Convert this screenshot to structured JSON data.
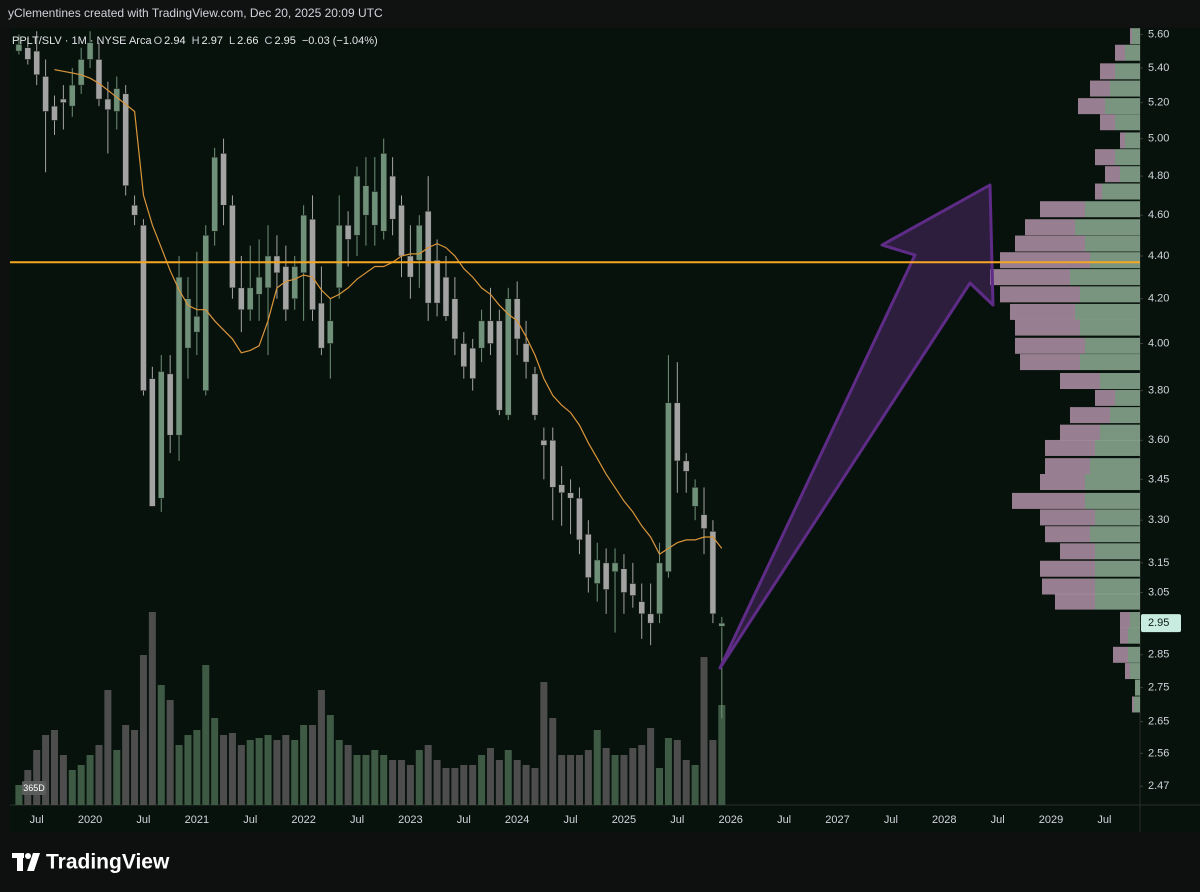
{
  "header": "yClementines created with TradingView.com, Dec 20, 2025 20:09 UTC",
  "chart_data": {
    "type": "candlestick",
    "legend": {
      "symbol": "PPLT/SLV · 1M · NYSE Arca",
      "fields": [
        {
          "key": "O",
          "value": "2.94"
        },
        {
          "key": "H",
          "value": "2.97"
        },
        {
          "key": "L",
          "value": "2.66"
        },
        {
          "key": "C",
          "value": "2.95"
        }
      ],
      "change": "−0.03 (−1.04%)"
    },
    "x": [
      "2019-05",
      "2019-06",
      "2019-07",
      "2019-08",
      "2019-09",
      "2019-10",
      "2019-11",
      "2019-12",
      "2020-01",
      "2020-02",
      "2020-03",
      "2020-04",
      "2020-05",
      "2020-06",
      "2020-07",
      "2020-08",
      "2020-09",
      "2020-10",
      "2020-11",
      "2020-12",
      "2021-01",
      "2021-02",
      "2021-03",
      "2021-04",
      "2021-05",
      "2021-06",
      "2021-07",
      "2021-08",
      "2021-09",
      "2021-10",
      "2021-11",
      "2021-12",
      "2022-01",
      "2022-02",
      "2022-03",
      "2022-04",
      "2022-05",
      "2022-06",
      "2022-07",
      "2022-08",
      "2022-09",
      "2022-10",
      "2022-11",
      "2022-12",
      "2023-01",
      "2023-02",
      "2023-03",
      "2023-04",
      "2023-05",
      "2023-06",
      "2023-07",
      "2023-08",
      "2023-09",
      "2023-10",
      "2023-11",
      "2023-12",
      "2024-01",
      "2024-02",
      "2024-03",
      "2024-04",
      "2024-05",
      "2024-06",
      "2024-07",
      "2024-08",
      "2024-09",
      "2024-10",
      "2024-11",
      "2024-12",
      "2025-01",
      "2025-02",
      "2025-03",
      "2025-04",
      "2025-05",
      "2025-06",
      "2025-07",
      "2025-08",
      "2025-09",
      "2025-10",
      "2025-11",
      "2025-12"
    ],
    "open": [
      5.5,
      5.52,
      5.5,
      5.35,
      5.18,
      5.22,
      5.18,
      5.3,
      5.45,
      5.45,
      5.22,
      5.15,
      5.25,
      4.65,
      4.55,
      3.85,
      3.38,
      3.87,
      3.62,
      3.98,
      4.05,
      3.8,
      4.52,
      4.92,
      4.65,
      4.25,
      4.15,
      4.22,
      4.25,
      4.4,
      4.35,
      4.2,
      4.32,
      4.58,
      4.18,
      4.0,
      4.25,
      4.55,
      4.5,
      4.6,
      4.55,
      4.52,
      4.8,
      4.65,
      4.4,
      4.38,
      4.62,
      4.38,
      4.3,
      4.2,
      4.0,
      3.98,
      3.98,
      4.1,
      4.1,
      3.7,
      4.2,
      4.0,
      3.87,
      3.6,
      3.6,
      3.43,
      3.4,
      3.38,
      3.25,
      3.08,
      3.15,
      3.12,
      3.13,
      3.08,
      3.02,
      2.98,
      2.98,
      3.12,
      3.75,
      3.52,
      3.35,
      3.32,
      3.26,
      2.94
    ],
    "high": [
      5.6,
      5.58,
      5.62,
      5.45,
      5.24,
      5.3,
      5.4,
      5.52,
      5.62,
      5.55,
      5.32,
      5.35,
      5.3,
      4.7,
      4.58,
      3.9,
      3.95,
      3.95,
      4.4,
      4.3,
      4.42,
      4.55,
      4.95,
      5.0,
      4.7,
      4.4,
      4.45,
      4.48,
      4.55,
      4.5,
      4.45,
      4.4,
      4.65,
      4.7,
      4.35,
      4.2,
      4.7,
      4.62,
      4.85,
      4.9,
      4.9,
      5.0,
      4.9,
      4.7,
      4.55,
      4.6,
      4.8,
      4.48,
      4.4,
      4.3,
      4.05,
      4.02,
      4.15,
      4.25,
      4.15,
      4.25,
      4.28,
      4.1,
      3.9,
      3.65,
      3.65,
      3.5,
      3.45,
      3.42,
      3.3,
      3.22,
      3.2,
      3.2,
      3.18,
      3.15,
      3.08,
      3.08,
      3.22,
      3.95,
      3.92,
      3.55,
      3.45,
      3.42,
      3.3,
      2.97
    ],
    "low": [
      5.48,
      5.42,
      5.3,
      4.82,
      5.02,
      5.05,
      5.12,
      5.25,
      5.4,
      5.18,
      4.92,
      5.05,
      4.7,
      4.55,
      3.78,
      3.35,
      3.33,
      3.55,
      3.52,
      3.85,
      3.95,
      3.78,
      4.45,
      4.55,
      4.2,
      4.05,
      4.1,
      4.1,
      3.95,
      4.2,
      4.1,
      4.15,
      4.1,
      4.1,
      3.95,
      3.85,
      4.2,
      4.35,
      4.4,
      4.45,
      4.45,
      4.48,
      4.5,
      4.3,
      4.2,
      4.25,
      4.1,
      4.12,
      4.1,
      3.95,
      3.85,
      3.8,
      3.92,
      3.95,
      3.7,
      3.68,
      3.95,
      3.85,
      3.68,
      3.45,
      3.3,
      3.28,
      3.25,
      3.18,
      3.05,
      3.02,
      2.98,
      2.92,
      2.98,
      3.0,
      2.9,
      2.88,
      2.95,
      3.1,
      3.4,
      3.4,
      3.3,
      3.18,
      2.95,
      2.66
    ],
    "close": [
      5.54,
      5.45,
      5.36,
      5.15,
      5.1,
      5.2,
      5.3,
      5.45,
      5.55,
      5.22,
      5.16,
      5.28,
      4.75,
      4.6,
      3.8,
      3.35,
      3.88,
      3.62,
      4.3,
      4.2,
      4.12,
      4.5,
      4.9,
      4.65,
      4.25,
      4.15,
      4.25,
      4.3,
      4.4,
      4.32,
      4.15,
      4.35,
      4.6,
      4.15,
      3.98,
      4.1,
      4.55,
      4.48,
      4.8,
      4.75,
      4.72,
      4.92,
      4.58,
      4.4,
      4.3,
      4.55,
      4.18,
      4.18,
      4.12,
      4.02,
      3.9,
      3.85,
      4.1,
      4.0,
      3.72,
      4.2,
      4.02,
      3.92,
      3.7,
      3.58,
      3.42,
      3.4,
      3.38,
      3.23,
      3.1,
      3.16,
      3.06,
      3.15,
      3.05,
      3.04,
      2.98,
      2.95,
      3.15,
      3.75,
      3.52,
      3.48,
      3.42,
      3.27,
      2.98,
      2.95
    ],
    "volume": [
      20,
      35,
      55,
      70,
      75,
      50,
      35,
      40,
      50,
      60,
      115,
      55,
      80,
      75,
      150,
      193,
      120,
      105,
      60,
      70,
      75,
      140,
      87,
      70,
      72,
      60,
      65,
      67,
      70,
      65,
      70,
      65,
      80,
      80,
      115,
      90,
      65,
      60,
      50,
      50,
      55,
      50,
      45,
      45,
      40,
      55,
      60,
      45,
      37,
      37,
      40,
      40,
      50,
      57,
      45,
      55,
      45,
      40,
      37,
      123,
      87,
      50,
      50,
      50,
      55,
      75,
      57,
      50,
      50,
      57,
      60,
      77,
      37,
      67,
      65,
      45,
      40,
      148,
      65,
      100
    ],
    "sma": [
      null,
      null,
      null,
      null,
      5.39,
      5.38,
      5.37,
      5.36,
      5.34,
      5.31,
      5.27,
      5.23,
      5.19,
      5.15,
      4.7,
      4.55,
      4.44,
      4.33,
      4.24,
      4.17,
      4.15,
      4.15,
      4.1,
      4.06,
      4.02,
      3.96,
      3.97,
      3.99,
      4.1,
      4.25,
      4.28,
      4.29,
      4.31,
      4.3,
      4.24,
      4.2,
      4.22,
      4.25,
      4.29,
      4.32,
      4.35,
      4.35,
      4.37,
      4.4,
      4.41,
      4.41,
      4.44,
      4.46,
      4.44,
      4.4,
      4.34,
      4.3,
      4.25,
      4.22,
      4.17,
      4.13,
      4.1,
      4.03,
      3.95,
      3.85,
      3.78,
      3.74,
      3.71,
      3.66,
      3.59,
      3.53,
      3.47,
      3.42,
      3.37,
      3.33,
      3.28,
      3.24,
      3.18,
      3.2,
      3.22,
      3.23,
      3.23,
      3.24,
      3.24,
      3.2
    ],
    "up_color": "#6f9179",
    "down_color": "#a3a3a3",
    "volume_up_color": "#3e5a45",
    "volume_down_color": "#4d4d4d",
    "sma_color": "#d9953a",
    "log_scale": true,
    "ylim": [
      2.42,
      5.64
    ],
    "yticks": [
      {
        "value": 5.6,
        "label": "5.60"
      },
      {
        "value": 5.4,
        "label": "5.40"
      },
      {
        "value": 5.2,
        "label": "5.20"
      },
      {
        "value": 5,
        "label": "5.00"
      },
      {
        "value": 4.8,
        "label": "4.80"
      },
      {
        "value": 4.6,
        "label": "4.60"
      },
      {
        "value": 4.4,
        "label": "4.40"
      },
      {
        "value": 4.2,
        "label": "4.20"
      },
      {
        "value": 4,
        "label": "4.00"
      },
      {
        "value": 3.8,
        "label": "3.80"
      },
      {
        "value": 3.6,
        "label": "3.60"
      },
      {
        "value": 3.45,
        "label": "3.45"
      },
      {
        "value": 3.3,
        "label": "3.30"
      },
      {
        "value": 3.15,
        "label": "3.15"
      },
      {
        "value": 3.05,
        "label": "3.05"
      },
      {
        "value": 2.95,
        "label": "2.95"
      },
      {
        "value": 2.85,
        "label": "2.85"
      },
      {
        "value": 2.75,
        "label": "2.75"
      },
      {
        "value": 2.65,
        "label": "2.65"
      },
      {
        "value": 2.56,
        "label": "2.56"
      },
      {
        "value": 2.47,
        "label": "2.47"
      }
    ],
    "xlim": [
      "2019-04",
      "2029-11"
    ],
    "xticks": [
      {
        "value": "2019-07",
        "label": "Jul"
      },
      {
        "value": "2020-01",
        "label": "2020"
      },
      {
        "value": "2020-07",
        "label": "Jul"
      },
      {
        "value": "2021-01",
        "label": "2021"
      },
      {
        "value": "2021-07",
        "label": "Jul"
      },
      {
        "value": "2022-01",
        "label": "2022"
      },
      {
        "value": "2022-07",
        "label": "Jul"
      },
      {
        "value": "2023-01",
        "label": "2023"
      },
      {
        "value": "2023-07",
        "label": "Jul"
      },
      {
        "value": "2024-01",
        "label": "2024"
      },
      {
        "value": "2024-07",
        "label": "Jul"
      },
      {
        "value": "2025-01",
        "label": "2025"
      },
      {
        "value": "2025-07",
        "label": "Jul"
      },
      {
        "value": "2026-01",
        "label": "2026"
      },
      {
        "value": "2026-07",
        "label": "Jul"
      },
      {
        "value": "2027-01",
        "label": "2027"
      },
      {
        "value": "2027-07",
        "label": "Jul"
      },
      {
        "value": "2028-01",
        "label": "2028"
      },
      {
        "value": "2028-07",
        "label": "Jul"
      },
      {
        "value": "2029-01",
        "label": "2029"
      },
      {
        "value": "2029-07",
        "label": "Jul"
      }
    ],
    "last_price": {
      "value": 2.95,
      "label": "2.95",
      "color": "#c8ece0"
    },
    "hline": {
      "value": 4.37,
      "color": "#f5a623"
    },
    "volume_profile": {
      "prices": [
        5.59,
        5.49,
        5.38,
        5.28,
        5.18,
        5.09,
        4.99,
        4.9,
        4.81,
        4.72,
        4.63,
        4.54,
        4.46,
        4.38,
        4.3,
        4.22,
        4.14,
        4.07,
        3.99,
        3.92,
        3.84,
        3.77,
        3.7,
        3.63,
        3.57,
        3.5,
        3.44,
        3.37,
        3.31,
        3.25,
        3.19,
        3.13,
        3.07,
        3.02,
        2.96,
        2.91,
        2.85,
        2.8,
        2.75,
        2.7
      ],
      "up": [
        8,
        15,
        25,
        30,
        35,
        25,
        15,
        25,
        20,
        38,
        55,
        65,
        55,
        50,
        70,
        60,
        65,
        60,
        55,
        60,
        40,
        25,
        30,
        40,
        45,
        50,
        55,
        55,
        45,
        50,
        45,
        45,
        45,
        45,
        10,
        12,
        12,
        10,
        5,
        6
      ],
      "down": [
        2,
        10,
        15,
        20,
        27,
        15,
        5,
        20,
        15,
        7,
        45,
        50,
        70,
        90,
        80,
        80,
        65,
        65,
        70,
        60,
        40,
        20,
        40,
        40,
        50,
        45,
        45,
        73,
        55,
        45,
        35,
        55,
        53,
        40,
        10,
        8,
        15,
        5,
        0,
        2
      ],
      "up_color": "#86a48c",
      "down_color": "#a78b9f"
    },
    "range_label": "365D"
  },
  "footer": {
    "logo": "TradingView"
  }
}
